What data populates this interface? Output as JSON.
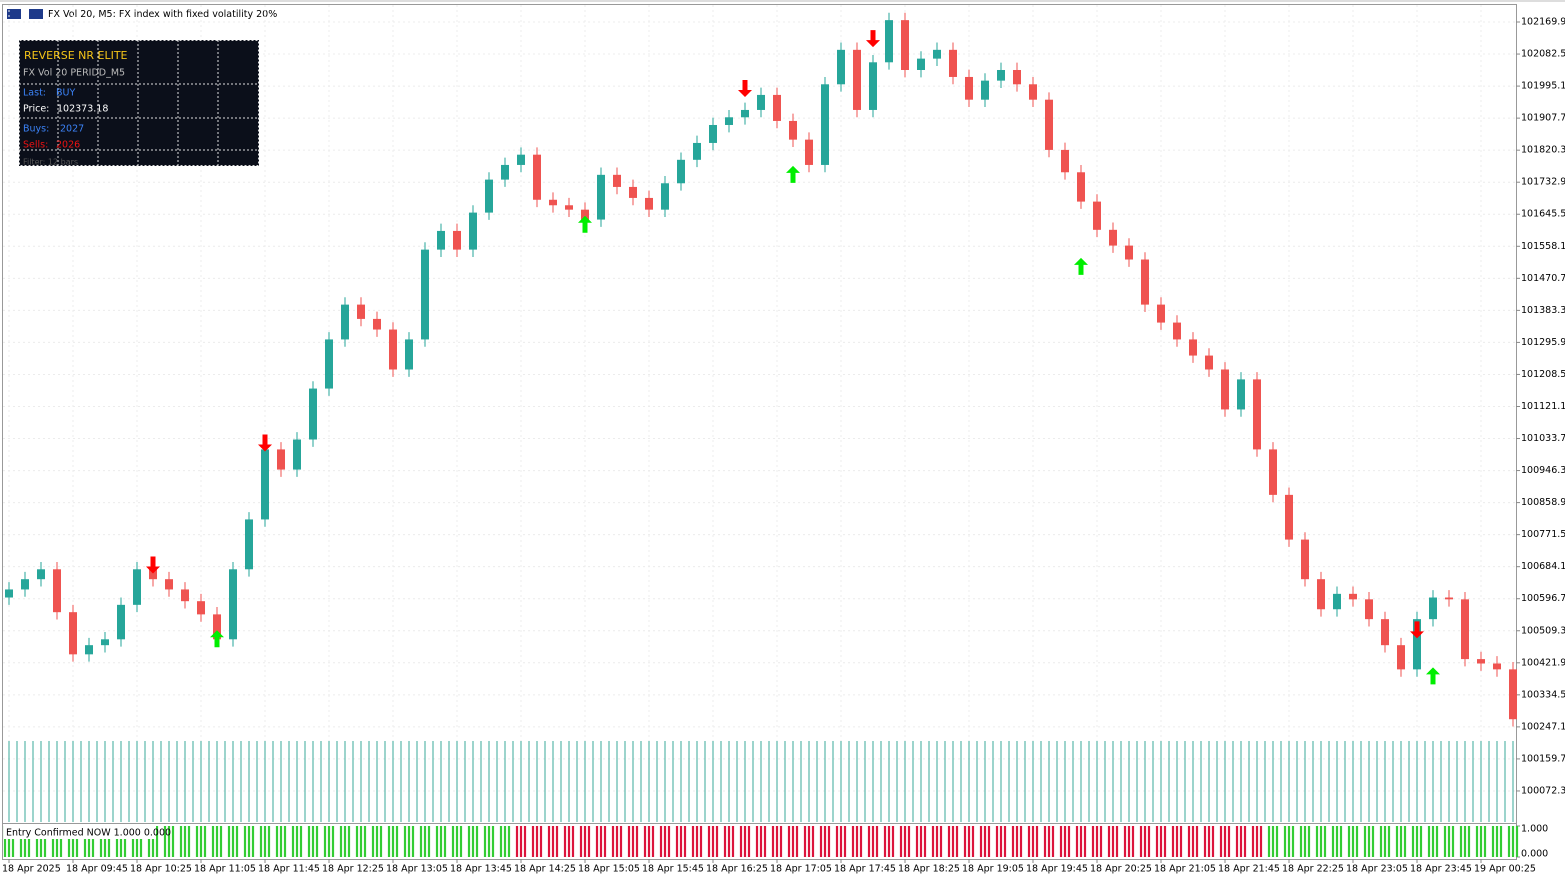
{
  "header": {
    "title": "FX Vol 20, M5:  FX index with fixed volatility 20%"
  },
  "panel": {
    "title": "REVERSE NR ELITE",
    "subtitle": "FX Vol 20  PERIDD_M5",
    "last_label": "Last:",
    "last_value": "BUY",
    "price_label": "Price:",
    "price_value": "102373.18",
    "buys_label": "Buys:",
    "buys_value": "2027",
    "sells_label": "Sells:",
    "sells_value": "2026",
    "filter": "Filter: 12 bars"
  },
  "chart_data": [
    {
      "type": "candlestick",
      "up_color": "#26a69a",
      "down_color": "#ef5350",
      "grid": true,
      "categories": [
        "18 Apr 2025",
        null,
        null,
        null,
        "18 Apr 09:45",
        null,
        null,
        null,
        "18 Apr 10:25",
        null,
        null,
        null,
        "18 Apr 11:05",
        null,
        null,
        null,
        "18 Apr 11:45",
        null,
        null,
        null,
        "18 Apr 12:25",
        null,
        null,
        null,
        "18 Apr 13:05",
        null,
        null,
        null,
        "18 Apr 13:45",
        null,
        null,
        null,
        "18 Apr 14:25",
        null,
        null,
        null,
        "18 Apr 15:05",
        null,
        null,
        null,
        "18 Apr 15:45",
        null,
        null,
        null,
        "18 Apr 16:25",
        null,
        null,
        null,
        "18 Apr 17:05",
        null,
        null,
        null,
        "18 Apr 17:45",
        null,
        null,
        null,
        "18 Apr 18:25",
        null,
        null,
        null,
        "18 Apr 19:05",
        null,
        null,
        null,
        "18 Apr 19:45",
        null,
        null,
        null,
        "18 Apr 20:25",
        null,
        null,
        null,
        "18 Apr 21:05",
        null,
        null,
        null,
        "18 Apr 21:45",
        null,
        null,
        null,
        "18 Apr 22:25",
        null,
        null,
        null,
        "18 Apr 23:05",
        null,
        null,
        null,
        "18 Apr 23:45",
        null,
        null,
        null,
        "19 Apr 00:25",
        null,
        null
      ],
      "open": [
        100600,
        100622,
        100650,
        100677,
        100560,
        100445,
        100470,
        100486,
        100580,
        100677,
        100650,
        100622,
        100590,
        100554,
        100486,
        100677,
        100813,
        101004,
        100949,
        101031,
        101170,
        101304,
        101399,
        101360,
        101331,
        101222,
        101304,
        101549,
        101600,
        101549,
        101650,
        101740,
        101780,
        101808,
        101685,
        101670,
        101658,
        101631,
        101753,
        101720,
        101690,
        101658,
        101730,
        101794,
        101840,
        101889,
        101910,
        101930,
        101971,
        101900,
        101849,
        101780,
        102000,
        102094,
        101930,
        102060,
        102175,
        102039,
        102070,
        102094,
        102020,
        101958,
        102010,
        102039,
        102000,
        101958,
        101821,
        101760,
        101680,
        101603,
        101560,
        101522,
        101399,
        101350,
        101304,
        101260,
        101222,
        101113,
        101195,
        101004,
        100880,
        100758,
        100650,
        100568,
        100610,
        100595,
        100541,
        100470,
        100404,
        100541,
        100600,
        100595,
        100432,
        100420,
        100404
      ],
      "high": [
        100642,
        100670,
        100697,
        100697,
        100580,
        100490,
        100506,
        100600,
        100697,
        100697,
        100670,
        100642,
        100610,
        100574,
        100697,
        100833,
        101024,
        101024,
        101051,
        101190,
        101324,
        101419,
        101419,
        101380,
        101351,
        101324,
        101569,
        101620,
        101620,
        101670,
        101760,
        101800,
        101828,
        101828,
        101705,
        101690,
        101678,
        101773,
        101773,
        101740,
        101710,
        101750,
        101814,
        101860,
        101909,
        101930,
        101950,
        101991,
        101991,
        101920,
        101869,
        102020,
        102114,
        102114,
        102080,
        102195,
        102195,
        102090,
        102114,
        102114,
        102040,
        102030,
        102059,
        102059,
        102020,
        101978,
        101841,
        101780,
        101700,
        101623,
        101580,
        101542,
        101419,
        101370,
        101324,
        101280,
        101242,
        101215,
        101215,
        101024,
        100900,
        100778,
        100670,
        100630,
        100630,
        100615,
        100561,
        100490,
        100561,
        100620,
        100620,
        100615,
        100452,
        100440,
        100424
      ],
      "low": [
        100580,
        100602,
        100630,
        100540,
        100425,
        100425,
        100450,
        100466,
        100560,
        100630,
        100602,
        100570,
        100534,
        100466,
        100466,
        100657,
        100793,
        100929,
        100929,
        101011,
        101150,
        101284,
        101340,
        101311,
        101202,
        101202,
        101284,
        101529,
        101529,
        101529,
        101630,
        101720,
        101760,
        101665,
        101650,
        101638,
        101611,
        101611,
        101700,
        101670,
        101638,
        101638,
        101710,
        101774,
        101820,
        101869,
        101890,
        101910,
        101880,
        101829,
        101760,
        101760,
        101980,
        101910,
        101910,
        102040,
        102019,
        102019,
        102050,
        102000,
        101938,
        101938,
        101990,
        101980,
        101938,
        101801,
        101740,
        101660,
        101583,
        101540,
        101502,
        101379,
        101330,
        101284,
        101240,
        101202,
        101093,
        101093,
        100984,
        100860,
        100738,
        100630,
        100548,
        100548,
        100575,
        100521,
        100450,
        100384,
        100384,
        100521,
        100575,
        100412,
        100400,
        100384,
        100248
      ],
      "close": [
        100622,
        100650,
        100677,
        100560,
        100445,
        100470,
        100486,
        100580,
        100677,
        100650,
        100622,
        100590,
        100554,
        100486,
        100677,
        100813,
        101004,
        100949,
        101031,
        101170,
        101304,
        101399,
        101360,
        101331,
        101222,
        101304,
        101549,
        101600,
        101549,
        101650,
        101740,
        101780,
        101808,
        101685,
        101670,
        101658,
        101631,
        101753,
        101720,
        101690,
        101658,
        101730,
        101794,
        101840,
        101889,
        101910,
        101930,
        101971,
        101900,
        101849,
        101780,
        102000,
        102094,
        101930,
        102060,
        102175,
        102039,
        102070,
        102094,
        102020,
        101958,
        102010,
        102039,
        102000,
        101958,
        101821,
        101760,
        101680,
        101603,
        101560,
        101522,
        101399,
        101350,
        101304,
        101260,
        101222,
        101113,
        101195,
        101004,
        100880,
        100758,
        100650,
        100568,
        100610,
        100595,
        100541,
        100470,
        100404,
        100541,
        100600,
        100595,
        100432,
        100420,
        100404,
        100268
      ],
      "ylim": [
        99984.9,
        102216.3
      ],
      "yticks": [
        {
          "value": 102169.9,
          "label": "102169.90"
        },
        {
          "value": 102082.5,
          "label": "102082.50"
        },
        {
          "value": 101995.1,
          "label": "101995.10"
        },
        {
          "value": 101907.7,
          "label": "101907.70"
        },
        {
          "value": 101820.3,
          "label": "101820.30"
        },
        {
          "value": 101732.9,
          "label": "101732.90"
        },
        {
          "value": 101645.5,
          "label": "101645.50"
        },
        {
          "value": 101558.1,
          "label": "101558.10"
        },
        {
          "value": 101470.7,
          "label": "101470.70"
        },
        {
          "value": 101383.3,
          "label": "101383.30"
        },
        {
          "value": 101295.9,
          "label": "101295.90"
        },
        {
          "value": 101208.5,
          "label": "101208.50"
        },
        {
          "value": 101121.1,
          "label": "101121.10"
        },
        {
          "value": 101033.7,
          "label": "101033.70"
        },
        {
          "value": 100946.3,
          "label": "100946.30"
        },
        {
          "value": 100858.9,
          "label": "100858.90"
        },
        {
          "value": 100771.5,
          "label": "100771.50"
        },
        {
          "value": 100684.1,
          "label": "100684.10"
        },
        {
          "value": 100596.7,
          "label": "100596.70"
        },
        {
          "value": 100509.3,
          "label": "100509.30"
        },
        {
          "value": 100421.9,
          "label": "100421.90"
        },
        {
          "value": 100334.5,
          "label": "100334.50"
        },
        {
          "value": 100247.1,
          "label": "100247.10"
        },
        {
          "value": 100159.7,
          "label": "100159.70"
        },
        {
          "value": 100072.3,
          "label": "100072.30"
        }
      ],
      "sell_signals": {
        "color": "#ff0000",
        "index": [
          9,
          16,
          46,
          54,
          88
        ],
        "values": [
          100690,
          101023,
          101990,
          102126,
          100513
        ]
      },
      "buy_signals": {
        "color": "#00ee00",
        "index": [
          13,
          36,
          49,
          67,
          89
        ],
        "values": [
          100486,
          101617,
          101753,
          101502,
          100385
        ]
      }
    },
    {
      "type": "signal-histogram",
      "label": "Entry Confirmed NOW 1.000 0.000",
      "ylim": [
        0,
        1
      ],
      "yticks": [
        {
          "value": 1,
          "label": "1.000"
        },
        {
          "value": 0,
          "label": "0.000"
        }
      ],
      "series": [
        {
          "color": "#33cc33",
          "values": [
            1,
            1,
            1,
            1,
            1,
            1,
            1,
            1,
            1,
            1,
            1,
            1,
            1,
            1,
            1,
            1,
            1,
            1,
            1,
            1,
            1,
            1,
            1,
            1,
            1,
            1,
            1,
            1,
            1,
            1,
            1,
            1,
            null,
            null,
            null,
            null,
            null,
            null,
            null,
            null,
            null,
            null,
            null,
            null,
            null,
            null,
            null,
            null,
            null,
            null,
            null,
            null,
            null,
            null,
            null,
            null,
            null,
            null,
            null,
            null,
            null,
            null,
            null,
            null,
            null,
            null,
            null,
            null,
            null,
            null,
            null,
            null,
            null,
            null,
            null,
            null,
            null,
            null,
            null,
            1,
            1,
            1,
            1,
            1,
            1,
            1,
            1,
            1,
            1,
            1,
            1,
            1,
            1,
            1,
            1
          ]
        },
        {
          "color": "#dc143c",
          "values": [
            null,
            null,
            null,
            null,
            null,
            null,
            null,
            null,
            null,
            null,
            null,
            null,
            null,
            null,
            null,
            null,
            null,
            null,
            null,
            null,
            null,
            null,
            null,
            null,
            null,
            null,
            null,
            null,
            null,
            null,
            null,
            null,
            1,
            1,
            1,
            1,
            1,
            1,
            1,
            1,
            1,
            1,
            1,
            1,
            1,
            1,
            1,
            1,
            1,
            1,
            1,
            1,
            1,
            1,
            1,
            1,
            1,
            1,
            1,
            1,
            1,
            1,
            1,
            1,
            1,
            1,
            1,
            1,
            1,
            1,
            1,
            1,
            1,
            1,
            1,
            1,
            1,
            1,
            1,
            null,
            null,
            null,
            null,
            null,
            null,
            null,
            null,
            null,
            null,
            null,
            null,
            null,
            null,
            null,
            null
          ]
        }
      ]
    }
  ]
}
